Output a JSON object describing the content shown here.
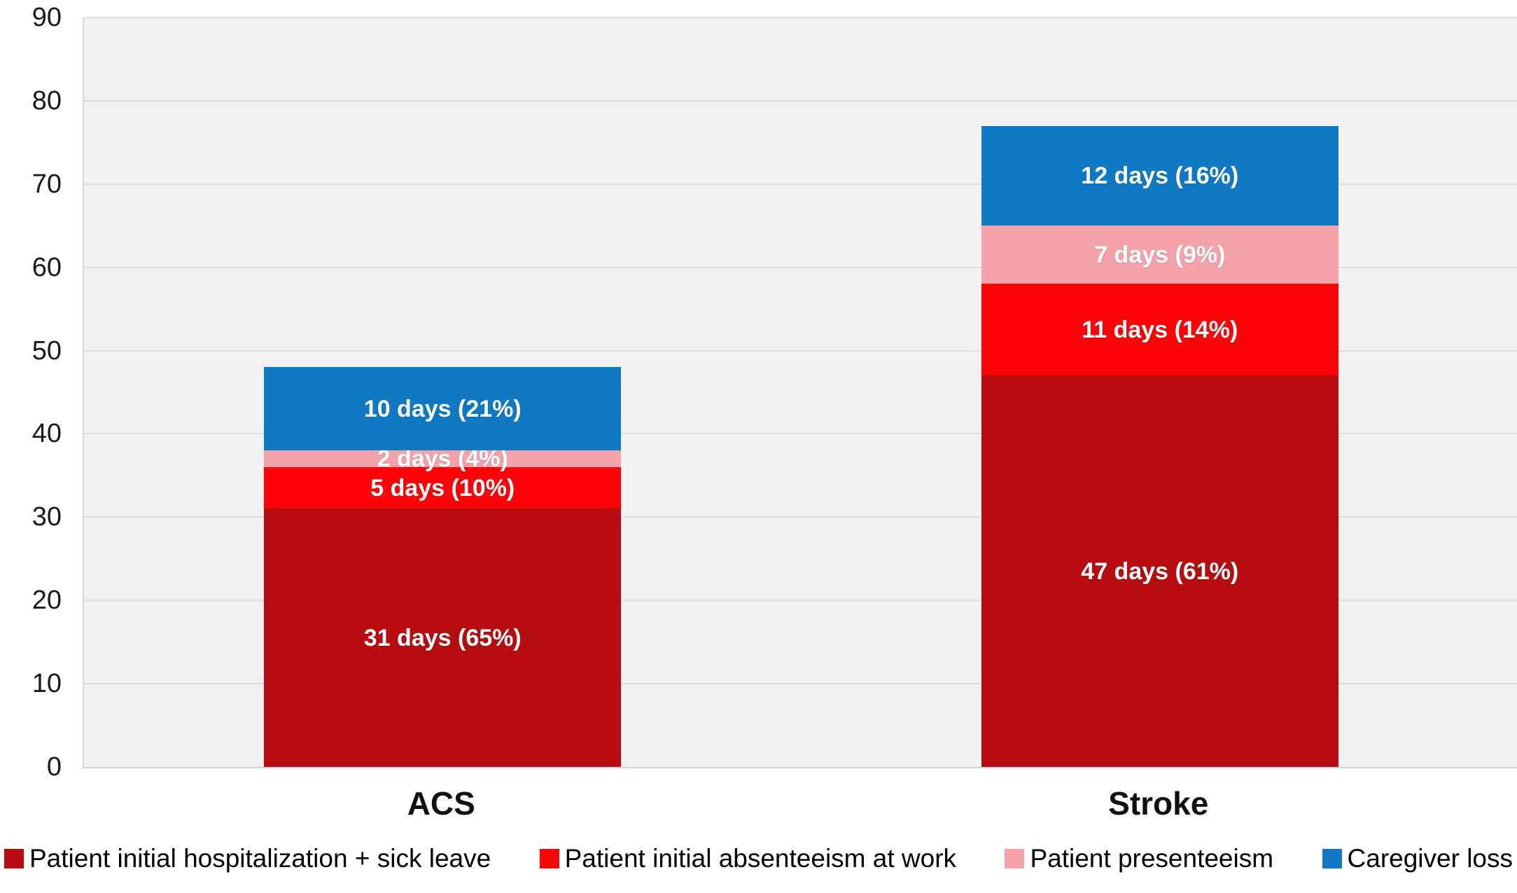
{
  "chart_data": {
    "type": "bar",
    "stacked": true,
    "title": "",
    "xlabel": "",
    "ylabel": "",
    "ylim": [
      0,
      90
    ],
    "yticks": [
      0,
      10,
      20,
      30,
      40,
      50,
      60,
      70,
      80,
      90
    ],
    "grid": true,
    "legend_position": "bottom",
    "categories": [
      "ACS",
      "Stroke"
    ],
    "series": [
      {
        "name": "Patient initial hospitalization + sick leave",
        "color": "#b80d10",
        "values": [
          31,
          47
        ],
        "labels": [
          "31 days (65%)",
          "47 days (61%)"
        ]
      },
      {
        "name": "Patient initial absenteeism at work",
        "color": "#fe0408",
        "values": [
          5,
          11
        ],
        "labels": [
          "5 days (10%)",
          "11 days (14%)"
        ]
      },
      {
        "name": "Patient presenteeism",
        "color": "#f4a3ab",
        "values": [
          2,
          7
        ],
        "labels": [
          "2 days (4%)",
          "7 days (9%)"
        ]
      },
      {
        "name": "Caregiver loss",
        "color": "#0f79c4",
        "values": [
          10,
          12
        ],
        "labels": [
          "10 days (21%)",
          "12 days (16%)"
        ]
      }
    ],
    "totals": [
      48,
      77
    ]
  }
}
